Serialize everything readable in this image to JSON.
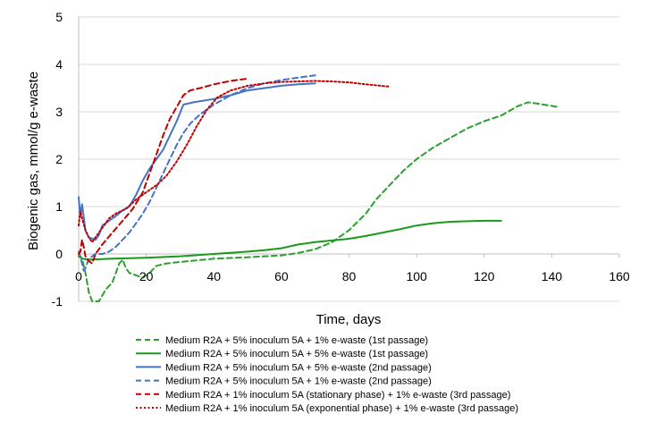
{
  "chart_data": {
    "type": "line",
    "title": "",
    "xlabel": "Time, days",
    "ylabel": "Biogenic gas, mmol/g e-waste",
    "xlim": [
      0,
      160
    ],
    "ylim": [
      -1,
      5
    ],
    "xticks": [
      "0",
      "20",
      "40",
      "60",
      "80",
      "100",
      "120",
      "140",
      "160"
    ],
    "yticks": [
      "-1",
      "0",
      "1",
      "2",
      "3",
      "4",
      "5"
    ],
    "grid": "horizontal",
    "legend_position": "bottom",
    "series": [
      {
        "name": "Medium R2A + 5% inoculum 5A + 1% e-waste (1st passage)",
        "color": "#2ca02c",
        "dash": "dashed",
        "points": [
          [
            0,
            0
          ],
          [
            1,
            -0.1
          ],
          [
            2,
            -0.4
          ],
          [
            3,
            -0.8
          ],
          [
            4,
            -1
          ],
          [
            6,
            -1
          ],
          [
            8,
            -0.75
          ],
          [
            10,
            -0.6
          ],
          [
            11,
            -0.4
          ],
          [
            12,
            -0.2
          ],
          [
            13,
            -0.12
          ],
          [
            14,
            -0.3
          ],
          [
            15,
            -0.4
          ],
          [
            17,
            -0.45
          ],
          [
            19,
            -0.5
          ],
          [
            21,
            -0.4
          ],
          [
            23,
            -0.25
          ],
          [
            26,
            -0.2
          ],
          [
            30,
            -0.17
          ],
          [
            40,
            -0.1
          ],
          [
            50,
            -0.07
          ],
          [
            60,
            -0.03
          ],
          [
            65,
            0.02
          ],
          [
            70,
            0.1
          ],
          [
            75,
            0.25
          ],
          [
            80,
            0.5
          ],
          [
            85,
            0.85
          ],
          [
            88,
            1.15
          ],
          [
            92,
            1.45
          ],
          [
            96,
            1.75
          ],
          [
            100,
            2.0
          ],
          [
            105,
            2.25
          ],
          [
            110,
            2.45
          ],
          [
            115,
            2.65
          ],
          [
            120,
            2.8
          ],
          [
            125,
            2.92
          ],
          [
            130,
            3.12
          ],
          [
            133,
            3.2
          ],
          [
            136,
            3.17
          ],
          [
            142,
            3.1
          ]
        ]
      },
      {
        "name": "Medium R2A + 5% inoculum 5A + 5% e-waste (1st passage)",
        "color": "#1a9a1a",
        "dash": "solid",
        "points": [
          [
            0,
            -0.05
          ],
          [
            1,
            -0.1
          ],
          [
            3,
            -0.12
          ],
          [
            10,
            -0.1
          ],
          [
            20,
            -0.08
          ],
          [
            30,
            -0.05
          ],
          [
            40,
            0
          ],
          [
            50,
            0.05
          ],
          [
            55,
            0.08
          ],
          [
            60,
            0.12
          ],
          [
            65,
            0.2
          ],
          [
            70,
            0.25
          ],
          [
            80,
            0.32
          ],
          [
            85,
            0.38
          ],
          [
            90,
            0.45
          ],
          [
            95,
            0.52
          ],
          [
            100,
            0.6
          ],
          [
            105,
            0.65
          ],
          [
            110,
            0.68
          ],
          [
            115,
            0.69
          ],
          [
            120,
            0.7
          ],
          [
            125,
            0.7
          ]
        ]
      },
      {
        "name": "Medium R2A + 5% inoculum 5A + 5% e-waste (2nd passage)",
        "color": "#4472c4",
        "dash": "solid",
        "points": [
          [
            0,
            1.2
          ],
          [
            0.5,
            0.8
          ],
          [
            1,
            1.05
          ],
          [
            2,
            0.5
          ],
          [
            3,
            0.35
          ],
          [
            5,
            0.3
          ],
          [
            6,
            0.4
          ],
          [
            7,
            0.6
          ],
          [
            9,
            0.7
          ],
          [
            11,
            0.8
          ],
          [
            13,
            0.92
          ],
          [
            15,
            1.0
          ],
          [
            17,
            1.25
          ],
          [
            19,
            1.55
          ],
          [
            21,
            1.8
          ],
          [
            23,
            2.0
          ],
          [
            25,
            2.2
          ],
          [
            27,
            2.5
          ],
          [
            29,
            2.8
          ],
          [
            31,
            3.15
          ],
          [
            34,
            3.2
          ],
          [
            40,
            3.27
          ],
          [
            45,
            3.35
          ],
          [
            50,
            3.45
          ],
          [
            55,
            3.5
          ],
          [
            60,
            3.55
          ],
          [
            65,
            3.58
          ],
          [
            70,
            3.6
          ]
        ]
      },
      {
        "name": "Medium R2A + 5% inoculum 5A + 1% e-waste (2nd passage)",
        "color": "#4472c4",
        "dash": "dashed",
        "points": [
          [
            0,
            0.05
          ],
          [
            1,
            -0.2
          ],
          [
            1.5,
            -0.35
          ],
          [
            2,
            -0.3
          ],
          [
            3,
            -0.1
          ],
          [
            5,
            0.0
          ],
          [
            7,
            0.0
          ],
          [
            9,
            0.05
          ],
          [
            11,
            0.15
          ],
          [
            13,
            0.3
          ],
          [
            15,
            0.45
          ],
          [
            17,
            0.65
          ],
          [
            19,
            0.85
          ],
          [
            21,
            1.1
          ],
          [
            23,
            1.4
          ],
          [
            25,
            1.7
          ],
          [
            27,
            2.0
          ],
          [
            29,
            2.3
          ],
          [
            31,
            2.55
          ],
          [
            33,
            2.75
          ],
          [
            36,
            2.95
          ],
          [
            40,
            3.15
          ],
          [
            45,
            3.35
          ],
          [
            50,
            3.5
          ],
          [
            55,
            3.6
          ],
          [
            60,
            3.67
          ],
          [
            65,
            3.72
          ],
          [
            70,
            3.77
          ]
        ]
      },
      {
        "name": "Medium R2A + 1% inoculum 5A (stationary phase)  + 1% e-waste (3rd passage)",
        "color": "#c00000",
        "dash": "dashed",
        "points": [
          [
            0,
            0
          ],
          [
            0.5,
            0.05
          ],
          [
            1,
            0.3
          ],
          [
            1.5,
            0.15
          ],
          [
            2,
            -0.05
          ],
          [
            3,
            -0.15
          ],
          [
            4,
            -0.2
          ],
          [
            5,
            0
          ],
          [
            7,
            0.2
          ],
          [
            10,
            0.45
          ],
          [
            13,
            0.7
          ],
          [
            16,
            0.95
          ],
          [
            19,
            1.3
          ],
          [
            21,
            1.7
          ],
          [
            23,
            2.1
          ],
          [
            25,
            2.5
          ],
          [
            27,
            2.85
          ],
          [
            29,
            3.1
          ],
          [
            31,
            3.35
          ],
          [
            33,
            3.45
          ],
          [
            36,
            3.5
          ],
          [
            40,
            3.58
          ],
          [
            45,
            3.65
          ],
          [
            50,
            3.7
          ]
        ]
      },
      {
        "name": "Medium R2A + 1% inoculum 5A (exponential phase)  + 1% e-waste (3rd passage)",
        "color": "#c00000",
        "dash": "dotted",
        "points": [
          [
            0,
            0.6
          ],
          [
            0.5,
            0.9
          ],
          [
            1,
            0.75
          ],
          [
            2,
            0.5
          ],
          [
            3,
            0.35
          ],
          [
            4,
            0.25
          ],
          [
            5,
            0.35
          ],
          [
            7,
            0.55
          ],
          [
            9,
            0.75
          ],
          [
            11,
            0.85
          ],
          [
            14,
            0.95
          ],
          [
            17,
            1.15
          ],
          [
            20,
            1.3
          ],
          [
            23,
            1.45
          ],
          [
            26,
            1.65
          ],
          [
            29,
            1.95
          ],
          [
            32,
            2.3
          ],
          [
            35,
            2.7
          ],
          [
            38,
            3.05
          ],
          [
            41,
            3.3
          ],
          [
            45,
            3.45
          ],
          [
            50,
            3.55
          ],
          [
            55,
            3.6
          ],
          [
            60,
            3.63
          ],
          [
            70,
            3.65
          ],
          [
            75,
            3.64
          ],
          [
            80,
            3.62
          ],
          [
            85,
            3.58
          ],
          [
            92,
            3.53
          ]
        ]
      }
    ]
  }
}
